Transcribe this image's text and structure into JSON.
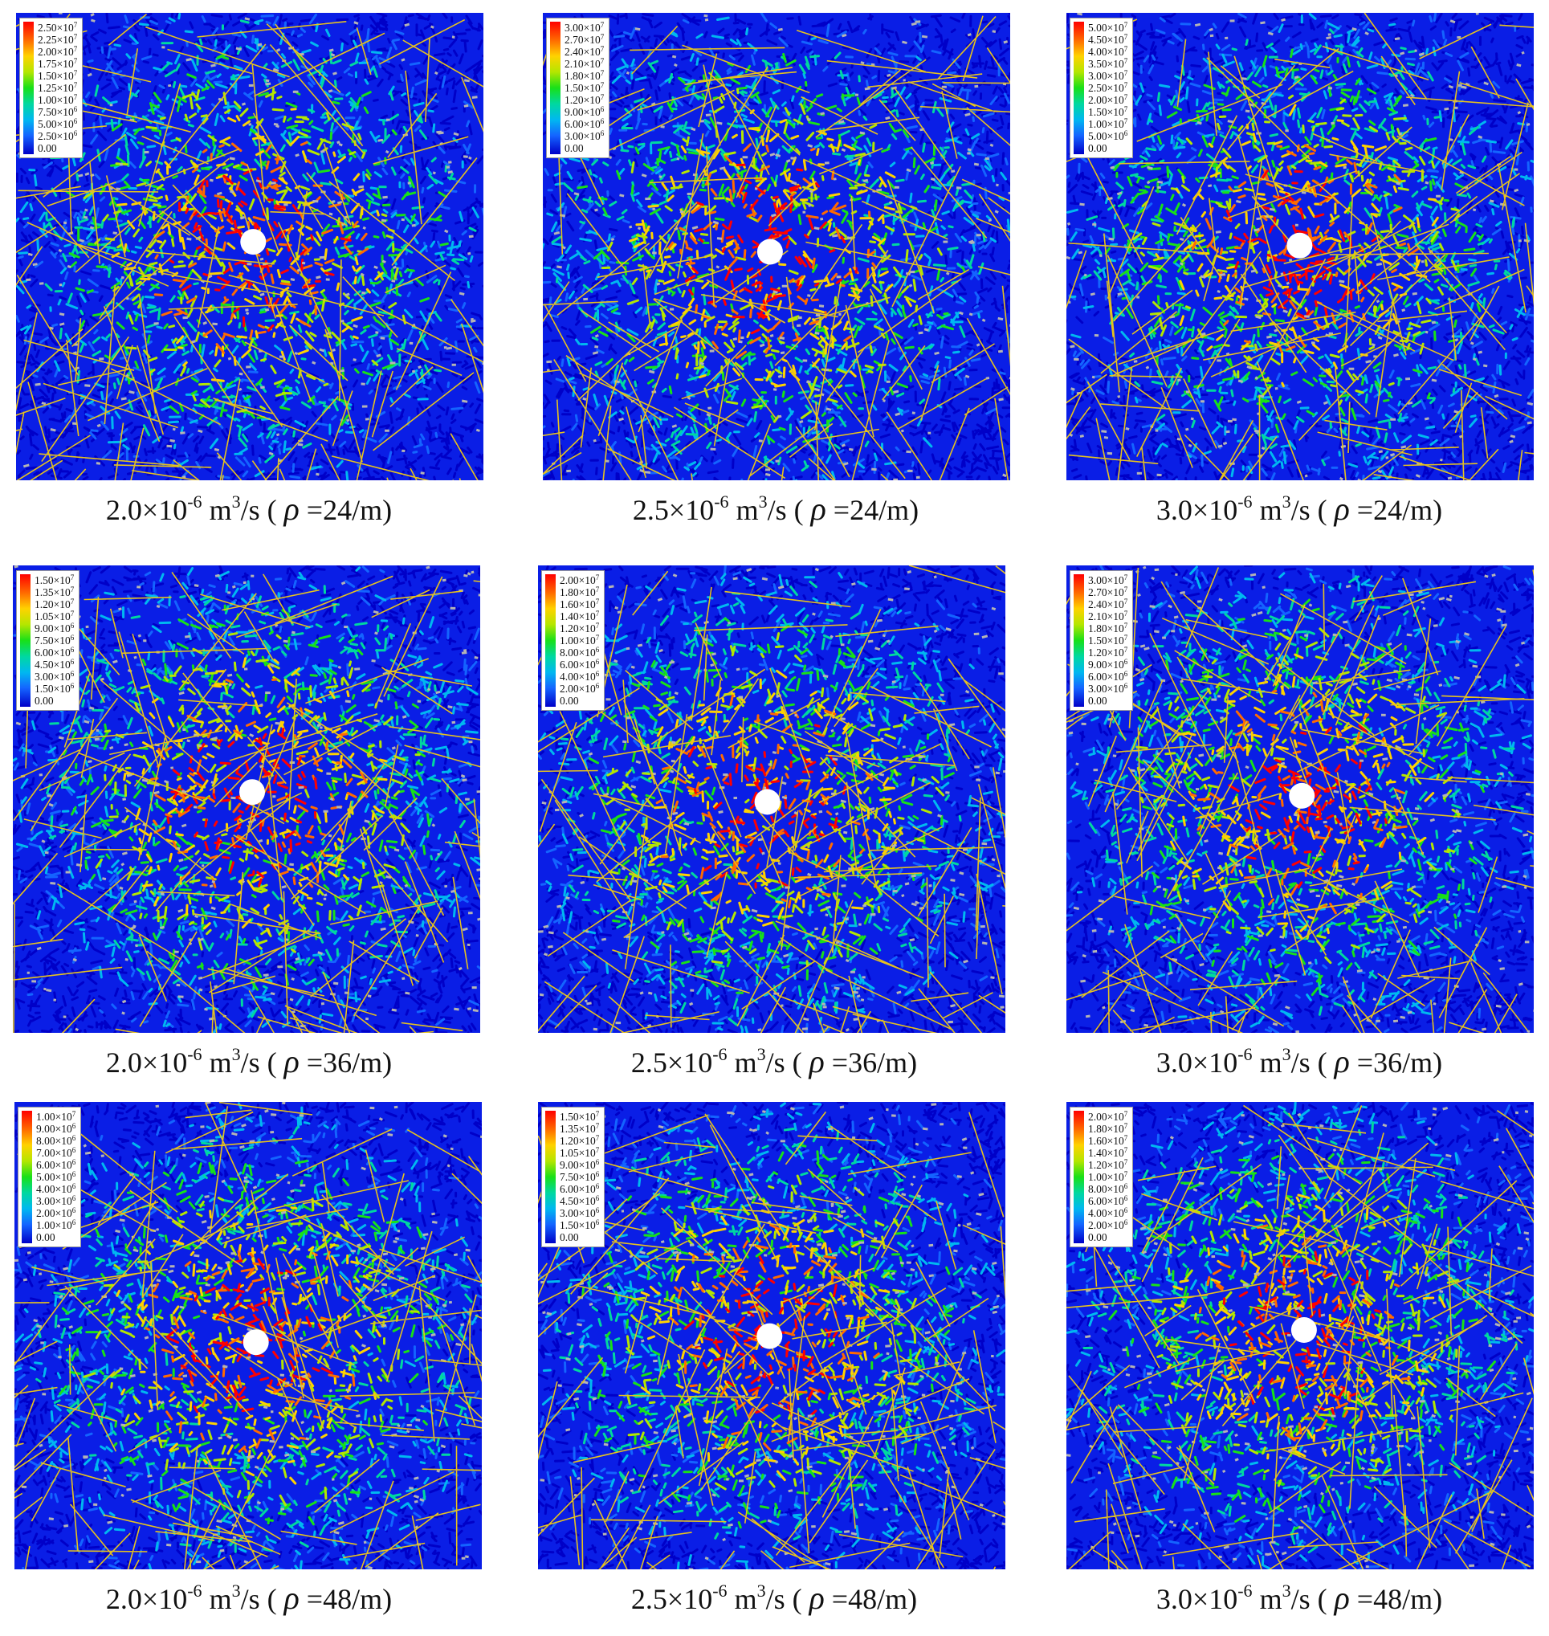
{
  "figure": {
    "panels": [
      {
        "caption": {
          "rate_mantissa": "2.0×10",
          "rate_exponent": "-6",
          "unit_m": " m",
          "unit_exp": "3",
          "unit_rest": "/s ( ",
          "rho": "ρ",
          "density": " =24/m)"
        },
        "legend": [
          [
            "2.50×10",
            "7"
          ],
          [
            "2.25×10",
            "7"
          ],
          [
            "2.00×10",
            "7"
          ],
          [
            "1.75×10",
            "7"
          ],
          [
            "1.50×10",
            "7"
          ],
          [
            "1.25×10",
            "7"
          ],
          [
            "1.00×10",
            "7"
          ],
          [
            "7.50×10",
            "6"
          ],
          [
            "5.00×10",
            "6"
          ],
          [
            "2.50×10",
            "6"
          ],
          [
            "0.00",
            ""
          ]
        ]
      },
      {
        "caption": {
          "rate_mantissa": "2.5×10",
          "rate_exponent": "-6",
          "unit_m": " m",
          "unit_exp": "3",
          "unit_rest": "/s ( ",
          "rho": "ρ",
          "density": " =24/m)"
        },
        "legend": [
          [
            "3.00×10",
            "7"
          ],
          [
            "2.70×10",
            "7"
          ],
          [
            "2.40×10",
            "7"
          ],
          [
            "2.10×10",
            "7"
          ],
          [
            "1.80×10",
            "7"
          ],
          [
            "1.50×10",
            "7"
          ],
          [
            "1.20×10",
            "7"
          ],
          [
            "9.00×10",
            "6"
          ],
          [
            "6.00×10",
            "6"
          ],
          [
            "3.00×10",
            "6"
          ],
          [
            "0.00",
            ""
          ]
        ]
      },
      {
        "caption": {
          "rate_mantissa": "3.0×10",
          "rate_exponent": "-6",
          "unit_m": " m",
          "unit_exp": "3",
          "unit_rest": "/s ( ",
          "rho": "ρ",
          "density": " =24/m)"
        },
        "legend": [
          [
            "5.00×10",
            "7"
          ],
          [
            "4.50×10",
            "7"
          ],
          [
            "4.00×10",
            "7"
          ],
          [
            "3.50×10",
            "7"
          ],
          [
            "3.00×10",
            "7"
          ],
          [
            "2.50×10",
            "7"
          ],
          [
            "2.00×10",
            "7"
          ],
          [
            "1.50×10",
            "7"
          ],
          [
            "1.00×10",
            "7"
          ],
          [
            "5.00×10",
            "6"
          ],
          [
            "0.00",
            ""
          ]
        ]
      },
      {
        "caption": {
          "rate_mantissa": "2.0×10",
          "rate_exponent": "-6",
          "unit_m": " m",
          "unit_exp": "3",
          "unit_rest": "/s ( ",
          "rho": "ρ",
          "density": " =36/m)"
        },
        "legend": [
          [
            "1.50×10",
            "7"
          ],
          [
            "1.35×10",
            "7"
          ],
          [
            "1.20×10",
            "7"
          ],
          [
            "1.05×10",
            "7"
          ],
          [
            "9.00×10",
            "6"
          ],
          [
            "7.50×10",
            "6"
          ],
          [
            "6.00×10",
            "6"
          ],
          [
            "4.50×10",
            "6"
          ],
          [
            "3.00×10",
            "6"
          ],
          [
            "1.50×10",
            "6"
          ],
          [
            "0.00",
            ""
          ]
        ]
      },
      {
        "caption": {
          "rate_mantissa": "2.5×10",
          "rate_exponent": "-6",
          "unit_m": " m",
          "unit_exp": "3",
          "unit_rest": "/s ( ",
          "rho": "ρ",
          "density": " =36/m)"
        },
        "legend": [
          [
            "2.00×10",
            "7"
          ],
          [
            "1.80×10",
            "7"
          ],
          [
            "1.60×10",
            "7"
          ],
          [
            "1.40×10",
            "7"
          ],
          [
            "1.20×10",
            "7"
          ],
          [
            "1.00×10",
            "7"
          ],
          [
            "8.00×10",
            "6"
          ],
          [
            "6.00×10",
            "6"
          ],
          [
            "4.00×10",
            "6"
          ],
          [
            "2.00×10",
            "6"
          ],
          [
            "0.00",
            ""
          ]
        ]
      },
      {
        "caption": {
          "rate_mantissa": "3.0×10",
          "rate_exponent": "-6",
          "unit_m": " m",
          "unit_exp": "3",
          "unit_rest": "/s ( ",
          "rho": "ρ",
          "density": " =36/m)"
        },
        "legend": [
          [
            "3.00×10",
            "7"
          ],
          [
            "2.70×10",
            "7"
          ],
          [
            "2.40×10",
            "7"
          ],
          [
            "2.10×10",
            "7"
          ],
          [
            "1.80×10",
            "7"
          ],
          [
            "1.50×10",
            "7"
          ],
          [
            "1.20×10",
            "7"
          ],
          [
            "9.00×10",
            "6"
          ],
          [
            "6.00×10",
            "6"
          ],
          [
            "3.00×10",
            "6"
          ],
          [
            "0.00",
            ""
          ]
        ]
      },
      {
        "caption": {
          "rate_mantissa": "2.0×10",
          "rate_exponent": "-6",
          "unit_m": " m",
          "unit_exp": "3",
          "unit_rest": "/s ( ",
          "rho": "ρ",
          "density": " =48/m)"
        },
        "legend": [
          [
            "1.00×10",
            "7"
          ],
          [
            "9.00×10",
            "6"
          ],
          [
            "8.00×10",
            "6"
          ],
          [
            "7.00×10",
            "6"
          ],
          [
            "6.00×10",
            "6"
          ],
          [
            "5.00×10",
            "6"
          ],
          [
            "4.00×10",
            "6"
          ],
          [
            "3.00×10",
            "6"
          ],
          [
            "2.00×10",
            "6"
          ],
          [
            "1.00×10",
            "6"
          ],
          [
            "0.00",
            ""
          ]
        ]
      },
      {
        "caption": {
          "rate_mantissa": "2.5×10",
          "rate_exponent": "-6",
          "unit_m": " m",
          "unit_exp": "3",
          "unit_rest": "/s ( ",
          "rho": "ρ",
          "density": " =48/m)"
        },
        "legend": [
          [
            "1.50×10",
            "7"
          ],
          [
            "1.35×10",
            "7"
          ],
          [
            "1.20×10",
            "7"
          ],
          [
            "1.05×10",
            "7"
          ],
          [
            "9.00×10",
            "6"
          ],
          [
            "7.50×10",
            "6"
          ],
          [
            "6.00×10",
            "6"
          ],
          [
            "4.50×10",
            "6"
          ],
          [
            "3.00×10",
            "6"
          ],
          [
            "1.50×10",
            "6"
          ],
          [
            "0.00",
            ""
          ]
        ]
      },
      {
        "caption": {
          "rate_mantissa": "3.0×10",
          "rate_exponent": "-6",
          "unit_m": " m",
          "unit_exp": "3",
          "unit_rest": "/s ( ",
          "rho": "ρ",
          "density": " =48/m)"
        },
        "legend": [
          [
            "2.00×10",
            "7"
          ],
          [
            "1.80×10",
            "7"
          ],
          [
            "1.60×10",
            "7"
          ],
          [
            "1.40×10",
            "7"
          ],
          [
            "1.20×10",
            "7"
          ],
          [
            "1.00×10",
            "7"
          ],
          [
            "8.00×10",
            "6"
          ],
          [
            "6.00×10",
            "6"
          ],
          [
            "4.00×10",
            "6"
          ],
          [
            "2.00×10",
            "6"
          ],
          [
            "0.00",
            ""
          ]
        ]
      }
    ],
    "colors": {
      "background_field": "#0a1ee6",
      "scale": [
        "#0000c8",
        "#1464ff",
        "#00b8f0",
        "#00d8a0",
        "#18e018",
        "#b4e600",
        "#ffd200",
        "#ff6a00",
        "#ff0000"
      ],
      "fiber": "#e6c21e",
      "grain": "#b4b4b4",
      "borehole": "#ffffff"
    }
  }
}
